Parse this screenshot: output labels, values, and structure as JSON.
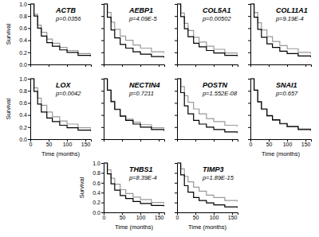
{
  "chart_data": [
    {
      "type": "line",
      "title": "ACTB",
      "annotation": "p=0.0356",
      "y_label": "Survival",
      "tick_labels": "y",
      "xlim": [
        0,
        165
      ],
      "ylim": [
        0,
        1
      ],
      "xticks": [
        0,
        50,
        100,
        150
      ],
      "yticks": [
        {
          "value": 0,
          "label": "0.0"
        },
        {
          "value": 0.2,
          "label": "0.2"
        },
        {
          "value": 0.4,
          "label": "0.4"
        },
        {
          "value": 0.6,
          "label": "0.6"
        },
        {
          "value": 0.8,
          "label": "0.8"
        },
        {
          "value": 1,
          "label": "1.0"
        }
      ],
      "x": [
        0,
        10,
        20,
        30,
        45,
        60,
        80,
        100,
        130,
        165
      ],
      "series": [
        {
          "color": "#999999",
          "line_style": "step",
          "values": [
            1,
            0.83,
            0.65,
            0.53,
            0.42,
            0.35,
            0.28,
            0.23,
            0.18,
            0.15
          ]
        },
        {
          "color": "#000000",
          "line_style": "step",
          "values": [
            1,
            0.8,
            0.6,
            0.47,
            0.36,
            0.3,
            0.24,
            0.2,
            0.15,
            0.13
          ]
        }
      ]
    },
    {
      "type": "line",
      "title": "AEBP1",
      "annotation": "p=4.09E-5",
      "tick_labels": false,
      "xlim": [
        0,
        165
      ],
      "ylim": [
        0,
        1
      ],
      "xticks": [
        0,
        50,
        100,
        150
      ],
      "yticks": [
        0,
        0.2,
        0.4,
        0.6,
        0.8,
        1
      ],
      "x": [
        0,
        10,
        20,
        30,
        45,
        60,
        80,
        100,
        130,
        165
      ],
      "series": [
        {
          "color": "#999999",
          "line_style": "step",
          "values": [
            1,
            0.86,
            0.7,
            0.58,
            0.47,
            0.4,
            0.32,
            0.27,
            0.21,
            0.18
          ]
        },
        {
          "color": "#000000",
          "line_style": "step",
          "values": [
            1,
            0.78,
            0.57,
            0.44,
            0.33,
            0.27,
            0.21,
            0.17,
            0.13,
            0.11
          ]
        }
      ]
    },
    {
      "type": "line",
      "title": "COL5A1",
      "annotation": "p=0.00502",
      "tick_labels": false,
      "xlim": [
        0,
        165
      ],
      "ylim": [
        0,
        1
      ],
      "xticks": [
        0,
        50,
        100,
        150
      ],
      "yticks": [
        0,
        0.2,
        0.4,
        0.6,
        0.8,
        1
      ],
      "x": [
        0,
        10,
        20,
        30,
        45,
        60,
        80,
        100,
        130,
        165
      ],
      "series": [
        {
          "color": "#999999",
          "line_style": "step",
          "values": [
            1,
            0.85,
            0.68,
            0.56,
            0.45,
            0.37,
            0.3,
            0.25,
            0.19,
            0.16
          ]
        },
        {
          "color": "#000000",
          "line_style": "step",
          "values": [
            1,
            0.79,
            0.59,
            0.46,
            0.35,
            0.29,
            0.23,
            0.19,
            0.15,
            0.13
          ]
        }
      ]
    },
    {
      "type": "line",
      "title": "COL11A1",
      "annotation": "p=9.19E-4",
      "tick_labels": false,
      "xlim": [
        0,
        165
      ],
      "ylim": [
        0,
        1
      ],
      "xticks": [
        0,
        50,
        100,
        150
      ],
      "yticks": [
        0,
        0.2,
        0.4,
        0.6,
        0.8,
        1
      ],
      "x": [
        0,
        10,
        20,
        30,
        45,
        60,
        80,
        100,
        130,
        165
      ],
      "series": [
        {
          "color": "#999999",
          "line_style": "step",
          "values": [
            1,
            0.86,
            0.69,
            0.57,
            0.46,
            0.38,
            0.31,
            0.26,
            0.2,
            0.17
          ]
        },
        {
          "color": "#000000",
          "line_style": "step",
          "values": [
            1,
            0.78,
            0.58,
            0.45,
            0.34,
            0.28,
            0.22,
            0.18,
            0.14,
            0.12
          ]
        }
      ]
    },
    {
      "type": "line",
      "title": "LOX",
      "annotation": "p=0.0042",
      "x_label": "Time (months)",
      "y_label": "Survival",
      "tick_labels": true,
      "xlim": [
        0,
        165
      ],
      "ylim": [
        0,
        1
      ],
      "xticks": [
        0,
        50,
        100,
        150
      ],
      "yticks": [
        {
          "value": 0,
          "label": "0.0"
        },
        {
          "value": 0.2,
          "label": "0.2"
        },
        {
          "value": 0.4,
          "label": "0.4"
        },
        {
          "value": 0.6,
          "label": "0.6"
        },
        {
          "value": 0.8,
          "label": "0.8"
        },
        {
          "value": 1,
          "label": "1.0"
        }
      ],
      "x": [
        0,
        10,
        20,
        30,
        45,
        60,
        80,
        100,
        130,
        165
      ],
      "series": [
        {
          "color": "#999999",
          "line_style": "step",
          "values": [
            1,
            0.85,
            0.68,
            0.56,
            0.45,
            0.37,
            0.3,
            0.25,
            0.19,
            0.16
          ]
        },
        {
          "color": "#000000",
          "line_style": "step",
          "values": [
            1,
            0.79,
            0.58,
            0.45,
            0.35,
            0.29,
            0.23,
            0.19,
            0.15,
            0.13
          ]
        }
      ]
    },
    {
      "type": "line",
      "title": "NECTIN4",
      "annotation": "p=0.7211",
      "tick_labels": false,
      "xlim": [
        0,
        165
      ],
      "ylim": [
        0,
        1
      ],
      "xticks": [
        0,
        50,
        100,
        150
      ],
      "yticks": [
        0,
        0.2,
        0.4,
        0.6,
        0.8,
        1
      ],
      "x": [
        0,
        10,
        20,
        30,
        45,
        60,
        80,
        100,
        130,
        165
      ],
      "series": [
        {
          "color": "#999999",
          "line_style": "step",
          "values": [
            1,
            0.81,
            0.63,
            0.5,
            0.39,
            0.33,
            0.28,
            0.24,
            0.19,
            0.16
          ]
        },
        {
          "color": "#000000",
          "line_style": "step",
          "values": [
            1,
            0.81,
            0.62,
            0.49,
            0.38,
            0.31,
            0.25,
            0.2,
            0.16,
            0.13
          ]
        }
      ]
    },
    {
      "type": "line",
      "title": "POSTN",
      "annotation": "p=1.552E-08",
      "tick_labels": false,
      "xlim": [
        0,
        165
      ],
      "ylim": [
        0,
        1
      ],
      "xticks": [
        0,
        50,
        100,
        150
      ],
      "yticks": [
        0,
        0.2,
        0.4,
        0.6,
        0.8,
        1
      ],
      "x": [
        0,
        10,
        20,
        30,
        45,
        60,
        80,
        100,
        130,
        165
      ],
      "series": [
        {
          "color": "#999999",
          "line_style": "step",
          "values": [
            1,
            0.87,
            0.72,
            0.61,
            0.5,
            0.42,
            0.34,
            0.29,
            0.23,
            0.2
          ]
        },
        {
          "color": "#000000",
          "line_style": "step",
          "values": [
            1,
            0.77,
            0.55,
            0.42,
            0.31,
            0.25,
            0.2,
            0.16,
            0.12,
            0.1
          ]
        }
      ]
    },
    {
      "type": "line",
      "title": "SNAI1",
      "annotation": "p=0.657",
      "x_label": "Time (months)",
      "tick_labels": "x",
      "xlim": [
        0,
        165
      ],
      "ylim": [
        0,
        1
      ],
      "xticks": [
        0,
        50,
        100,
        150
      ],
      "yticks": [
        0,
        0.2,
        0.4,
        0.6,
        0.8,
        1
      ],
      "x": [
        0,
        10,
        20,
        30,
        45,
        60,
        80,
        100,
        130,
        165
      ],
      "series": [
        {
          "color": "#999999",
          "line_style": "step",
          "values": [
            1,
            0.81,
            0.61,
            0.49,
            0.38,
            0.31,
            0.25,
            0.21,
            0.17,
            0.14
          ]
        },
        {
          "color": "#000000",
          "line_style": "step",
          "values": [
            1,
            0.81,
            0.62,
            0.5,
            0.39,
            0.32,
            0.26,
            0.21,
            0.16,
            0.14
          ]
        }
      ]
    },
    {
      "type": "line",
      "title": "THBS1",
      "annotation": "p=8.39E-4",
      "x_label": "Time (months)",
      "y_label": "Survival",
      "tick_labels": true,
      "xlim": [
        0,
        165
      ],
      "ylim": [
        0,
        1
      ],
      "xticks": [
        0,
        50,
        100,
        150
      ],
      "yticks": [
        {
          "value": 0,
          "label": "0.0"
        },
        {
          "value": 0.2,
          "label": "0.2"
        },
        {
          "value": 0.4,
          "label": "0.4"
        },
        {
          "value": 0.6,
          "label": "0.6"
        },
        {
          "value": 0.8,
          "label": "0.8"
        },
        {
          "value": 1,
          "label": "1.0"
        }
      ],
      "x": [
        0,
        10,
        20,
        30,
        45,
        60,
        80,
        100,
        130,
        165
      ],
      "series": [
        {
          "color": "#999999",
          "line_style": "step",
          "values": [
            1,
            0.86,
            0.69,
            0.57,
            0.46,
            0.38,
            0.31,
            0.26,
            0.2,
            0.17
          ]
        },
        {
          "color": "#000000",
          "line_style": "step",
          "values": [
            1,
            0.78,
            0.58,
            0.45,
            0.34,
            0.28,
            0.22,
            0.18,
            0.14,
            0.12
          ]
        }
      ]
    },
    {
      "type": "line",
      "title": "TIMP3",
      "annotation": "p=1.89E-15",
      "x_label": "Time (months)",
      "tick_labels": "x",
      "xlim": [
        0,
        165
      ],
      "ylim": [
        0,
        1
      ],
      "xticks": [
        0,
        50,
        100,
        150
      ],
      "yticks": [
        0,
        0.2,
        0.4,
        0.6,
        0.8,
        1
      ],
      "x": [
        0,
        10,
        20,
        30,
        45,
        60,
        80,
        100,
        130,
        165
      ],
      "series": [
        {
          "color": "#999999",
          "line_style": "step",
          "values": [
            1,
            0.88,
            0.73,
            0.62,
            0.51,
            0.43,
            0.35,
            0.3,
            0.24,
            0.21
          ]
        },
        {
          "color": "#000000",
          "line_style": "step",
          "values": [
            1,
            0.76,
            0.54,
            0.41,
            0.3,
            0.24,
            0.19,
            0.15,
            0.11,
            0.09
          ]
        }
      ]
    }
  ]
}
